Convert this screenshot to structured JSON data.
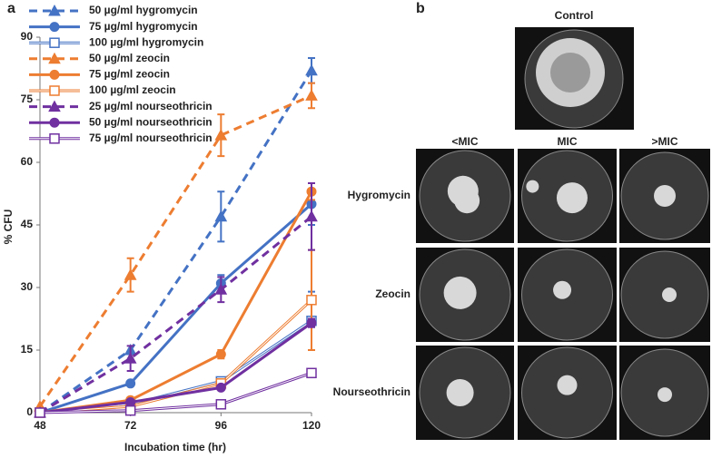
{
  "chart_data": {
    "type": "line",
    "panel_label": "a",
    "xlabel": "Incubation time (hr)",
    "ylabel": "% CFU",
    "x": [
      48,
      72,
      96,
      120
    ],
    "xlim": [
      48,
      120
    ],
    "xticks": [
      48,
      72,
      96,
      120
    ],
    "ylim": [
      0,
      90
    ],
    "yticks": [
      0,
      15,
      30,
      45,
      60,
      75,
      90
    ],
    "legend": "upper left",
    "series": [
      {
        "name": "50 µg/ml hygromycin",
        "color": "#4472c4",
        "dash": true,
        "marker": "triangle",
        "open": false,
        "values": [
          0,
          15,
          47,
          82
        ],
        "errors": [
          null,
          null,
          6,
          3
        ]
      },
      {
        "name": "75 µg/ml hygromycin",
        "color": "#4472c4",
        "dash": false,
        "marker": "circle",
        "open": false,
        "values": [
          0,
          7,
          31,
          50
        ],
        "errors": [
          null,
          null,
          2,
          5
        ]
      },
      {
        "name": "100 µg/ml hygromycin",
        "color": "#4472c4",
        "dash": false,
        "marker": "square",
        "open": true,
        "values": [
          0,
          2,
          7.5,
          22
        ],
        "errors": [
          null,
          null,
          null,
          7
        ]
      },
      {
        "name": "50 µg/ml zeocin",
        "color": "#ed7d31",
        "dash": true,
        "marker": "triangle",
        "open": false,
        "values": [
          1.5,
          33,
          66.5,
          76
        ],
        "errors": [
          null,
          4,
          5,
          3
        ]
      },
      {
        "name": "75 µg/ml zeocin",
        "color": "#ed7d31",
        "dash": false,
        "marker": "circle",
        "open": false,
        "values": [
          0,
          3,
          14,
          53
        ],
        "errors": [
          null,
          null,
          1,
          2
        ]
      },
      {
        "name": "100 µg/ml zeocin",
        "color": "#ed7d31",
        "dash": false,
        "marker": "square",
        "open": true,
        "values": [
          0,
          1.5,
          7,
          27
        ],
        "errors": [
          null,
          null,
          null,
          12
        ]
      },
      {
        "name": "25 µg/ml nourseothricin",
        "color": "#7030a0",
        "dash": true,
        "marker": "triangle",
        "open": false,
        "values": [
          0,
          13,
          29.5,
          47
        ],
        "errors": [
          null,
          3,
          3,
          8
        ]
      },
      {
        "name": "50 µg/ml nourseothricin",
        "color": "#7030a0",
        "dash": false,
        "marker": "circle",
        "open": false,
        "values": [
          0,
          2.5,
          6,
          21.5
        ],
        "errors": [
          null,
          null,
          null,
          1
        ]
      },
      {
        "name": "75 µg/ml nourseothricin",
        "color": "#7030a0",
        "dash": false,
        "marker": "square",
        "open": true,
        "values": [
          0,
          0.5,
          2,
          9.5
        ],
        "errors": [
          null,
          null,
          null,
          null
        ]
      }
    ]
  },
  "panel_b": {
    "panel_label": "b",
    "control": "Control",
    "columns": [
      "<MIC",
      "MIC",
      ">MIC"
    ],
    "rows": [
      "Hygromycin",
      "Zeocin",
      "Nourseothricin"
    ]
  }
}
